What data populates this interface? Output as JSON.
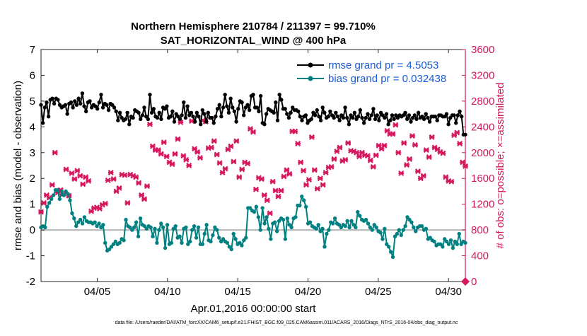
{
  "chart_data": {
    "type": "line",
    "title": "Northern Hemisphere 210784 / 211397 = 99.710%",
    "subtitle": "SAT_HORIZONTAL_WIND @ 400 hPa",
    "xlabel": "Apr.01,2016 00:00:00 start",
    "ylabel_left": "rmse and bias (model - observation)",
    "ylabel_right": "# of obs: o=possible; ×=assimilated",
    "footer": "data file: /Users/raeder/DAI/ATM_forcXX/CAM6_setup/f.e21.FHIST_BGC.f09_025.CAM6assim.011/ACARS_2016/Diags_NTrS_2016-04/obs_diag_output.nc",
    "xlim": [
      1,
      31.2
    ],
    "ylim_left": [
      -2,
      7
    ],
    "ylim_right": [
      0,
      3600
    ],
    "x_ticks": [
      5,
      10,
      15,
      20,
      25,
      30
    ],
    "x_tick_labels": [
      "04/05",
      "04/10",
      "04/15",
      "04/20",
      "04/25",
      "04/30"
    ],
    "y_ticks_left": [
      -2,
      -1,
      0,
      1,
      2,
      3,
      4,
      5,
      6,
      7
    ],
    "y_ticks_right": [
      0,
      400,
      800,
      1200,
      1600,
      2000,
      2400,
      2800,
      3200,
      3600
    ],
    "zero_line": 0,
    "legend_position": "top-right",
    "colors": {
      "rmse": "#000000",
      "bias": "#008080",
      "obs": "#d6185f",
      "zero": "#b4b4b4",
      "legend_text": "#1a5cd8"
    },
    "series": [
      {
        "name": "rmse grand pr = 4.5053",
        "axis": "left",
        "values": [
          4.85,
          4.15,
          4.75,
          4.95,
          4.4,
          5.05,
          5.1,
          4.9,
          5.1,
          5.05,
          4.85,
          4.75,
          4.8,
          4.85,
          4.5,
          4.9,
          4.95,
          4.75,
          5.0,
          4.85,
          5.1,
          4.9,
          5.3,
          4.8,
          4.6,
          4.95,
          5.0,
          4.75,
          4.85,
          4.8,
          4.7,
          4.95,
          5.25,
          4.75,
          4.9,
          4.85,
          4.65,
          4.9,
          4.85,
          4.75,
          4.6,
          4.25,
          4.55,
          4.35,
          4.25,
          4.3,
          4.55,
          4.1,
          4.4,
          4.35,
          4.65,
          4.6,
          4.55,
          4.3,
          4.45,
          4.75,
          4.4,
          4.3,
          5.25,
          4.55,
          4.7,
          4.4,
          4.35,
          4.55,
          4.3,
          4.75,
          4.7,
          4.8,
          4.35,
          4.4,
          4.6,
          4.2,
          4.5,
          4.4,
          4.3,
          4.45,
          4.95,
          4.35,
          4.8,
          4.45,
          4.55,
          4.4,
          4.2,
          4.55,
          4.4,
          4.1,
          4.65,
          4.5,
          4.2,
          4.55,
          4.35,
          4.35,
          4.15,
          4.4,
          4.7,
          4.85,
          4.4,
          4.75,
          5.25,
          4.8,
          4.55,
          5.1,
          4.75,
          4.6,
          4.2,
          4.7,
          5.0,
          4.95,
          4.45,
          4.75,
          4.85,
          4.65,
          5.2,
          5.25,
          4.75,
          4.75,
          4.6,
          5.2,
          4.15,
          4.1,
          4.5,
          4.7,
          4.65,
          4.6,
          4.55,
          4.95,
          4.25,
          5.25,
          5.05,
          4.7,
          4.7,
          4.5,
          4.35,
          4.55,
          4.75,
          4.65,
          4.65,
          4.6,
          4.4,
          4.25,
          4.4,
          4.45,
          4.15,
          4.25,
          4.3,
          4.55,
          4.45,
          4.65,
          4.4,
          4.25,
          4.75,
          4.55,
          4.35,
          4.4,
          4.6,
          4.45,
          4.35,
          4.55,
          4.4,
          4.25,
          4.45,
          4.35,
          4.75,
          4.35,
          4.1,
          4.45,
          4.35,
          4.55,
          4.3,
          4.4,
          4.65,
          4.35,
          4.15,
          4.35,
          4.5,
          4.3,
          4.45,
          4.7,
          4.3,
          4.45,
          4.25,
          4.55,
          4.45,
          4.35,
          4.5,
          4.1,
          4.25,
          4.45,
          4.3,
          4.45,
          4.35,
          4.45,
          4.4,
          4.45,
          4.55,
          4.3,
          4.45,
          4.2,
          4.35,
          4.45,
          4.3,
          4.55,
          4.35,
          4.4,
          4.3,
          4.5,
          4.35,
          4.2,
          4.4,
          4.4,
          4.4,
          4.25,
          4.45,
          4.45,
          4.4,
          4.4,
          4.5,
          4.1,
          4.35,
          4.45,
          4.45,
          4.15,
          4.45,
          4.6,
          4.4,
          3.7,
          3.7
        ]
      },
      {
        "name": "bias grand pr = 0.032438",
        "axis": "left",
        "values": [
          0.1,
          0.15,
          0.1,
          0.9,
          1.05,
          1.2,
          1.35,
          1.55,
          1.55,
          1.2,
          1.5,
          1.35,
          1.5,
          1.4,
          1.15,
          0.65,
          0.45,
          0.15,
          0.3,
          0.4,
          0.25,
          0.5,
          0.35,
          0.3,
          0.3,
          0.25,
          0.3,
          0.15,
          0.25,
          0.1,
          0.2,
          -0.5,
          -0.8,
          -0.75,
          -0.65,
          -0.55,
          -0.45,
          -0.55,
          -0.5,
          -0.35,
          -0.4,
          0.4,
          0.15,
          0.1,
          0.0,
          0.1,
          0.3,
          -0.25,
          0.45,
          0.2,
          0.15,
          0.05,
          0.15,
          0.1,
          -0.25,
          0.05,
          -0.5,
          0.0,
          0.25,
          0.1,
          -0.7,
          0.2,
          -0.55,
          -0.5,
          0.05,
          0.15,
          -0.3,
          -0.25,
          -0.5,
          0.05,
          0.1,
          -0.55,
          -0.45,
          0.0,
          0.15,
          -0.3,
          0.1,
          -0.55,
          -0.55,
          -0.15,
          0.2,
          -0.4,
          -0.45,
          -0.2,
          0.1,
          0.0,
          -0.3,
          -0.45,
          -0.35,
          -0.45,
          -0.5,
          -0.65,
          -0.75,
          -0.15,
          -0.35,
          -0.55,
          -0.5,
          -0.6,
          -0.4,
          -0.3,
          0.85,
          0.85,
          0.75,
          0.7,
          0.9,
          0.5,
          0.0,
          0.85,
          0.25,
          0.5,
          0.05,
          -0.35,
          0.25,
          0.3,
          -0.05,
          0.35,
          0.45,
          0.4,
          -0.35,
          0.45,
          0.2,
          0.1,
          0.45,
          0.5,
          0.95,
          0.95,
          1.3,
          1.15,
          0.9,
          0.25,
          0.3,
          0.15,
          0.1,
          0.05,
          0.2,
          -0.05,
          0.05,
          -0.65,
          -0.15,
          0.0,
          0.3,
          0.25,
          0.45,
          0.25,
          0.2,
          0.1,
          0.2,
          0.15,
          0.35,
          0.1,
          0.35,
          0.2,
          0.1,
          0.7,
          0.55,
          0.4,
          0.35,
          0.4,
          0.25,
          0.1,
          0.0,
          0.2,
          0.1,
          -0.05,
          -0.1,
          -0.35,
          0.05,
          -0.55,
          -0.65,
          -0.85,
          -1.05,
          -0.25,
          -0.15,
          0.0,
          -0.2,
          0.0,
          0.15,
          0.5,
          0.4,
          0.3,
          0.1,
          -0.05,
          0.1,
          0.15,
          0.15,
          0.0,
          0.05,
          -0.35,
          -0.3,
          -0.4,
          -0.45,
          -0.6,
          -0.55,
          -0.55,
          -0.65,
          -0.35,
          -0.45,
          -0.55,
          -0.4,
          -0.7,
          -0.45,
          -0.55,
          -0.15,
          -0.55,
          -0.45,
          -0.5
        ]
      },
      {
        "name": "# of obs assimilated",
        "axis": "right",
        "marker": "x",
        "values": [
          1080,
          1220,
          1340,
          1300,
          1500,
          2000,
          1380,
          1420,
          1360,
          1740,
          1330,
          1680,
          1590,
          1720,
          1640,
          1510,
          1620,
          1560,
          1090,
          1140,
          1150,
          1130,
          1190,
          1210,
          1570,
          1690,
          1590,
          1400,
          1450,
          1660,
          1650,
          1220,
          1660,
          1640,
          1620,
          1530,
          1340,
          1280,
          1480,
          2440,
          2100,
          2040,
          2040,
          1980,
          2160,
          1940,
          1850,
          1820,
          1980,
          2210,
          2470,
          1950,
          1890,
          1800,
          2490,
          2060,
          2010,
          1920,
          2500,
          2480,
          2070,
          2080,
          2180,
          1970,
          1840,
          1690,
          1750,
          2050,
          2100,
          1860,
          2180,
          1620,
          1740,
          1850,
          1830,
          2370,
          2320,
          1430,
          1610,
          1590,
          1340,
          1260,
          1060,
          1550,
          1410,
          1320,
          1410,
          1630,
          1730,
          1670,
          2330,
          2330,
          2140,
          1850,
          1720,
          1500,
          1580,
          2240,
          1730,
          1440,
          1600,
          1500,
          1690,
          1770,
          1780,
          1900,
          2020,
          2080,
          1870,
          1890,
          2150,
          2030,
          2020,
          2000,
          1940,
          2000,
          1960,
          1950,
          1880,
          1780,
          1960,
          2110,
          2060,
          2110,
          2340,
          2290,
          2290,
          2430,
          2000,
          1680,
          2150,
          1810,
          1900,
          2260,
          2120,
          1710,
          1600,
          1640,
          2040,
          1930,
          2240,
          2080,
          2050,
          2010,
          1990,
          1620,
          1560,
          1550,
          2270,
          2310,
          2140,
          1850,
          1790
        ]
      }
    ],
    "annotations": []
  }
}
